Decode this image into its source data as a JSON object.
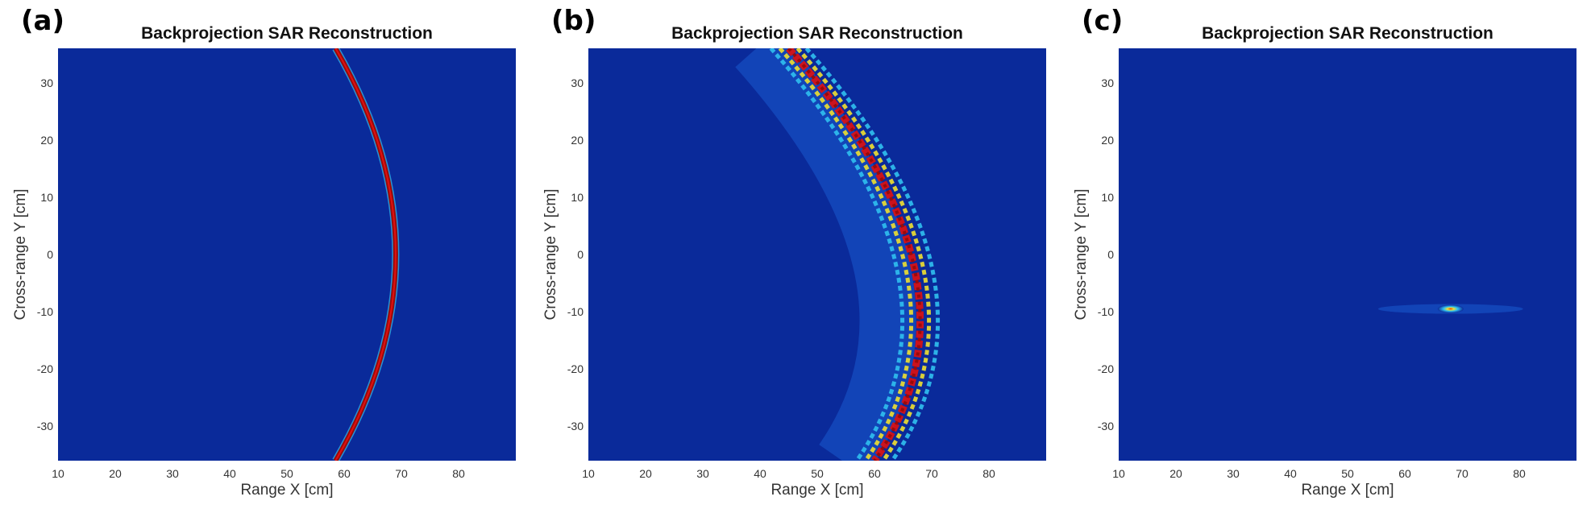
{
  "chart_data": [
    {
      "type": "heatmap",
      "panel_label": "(a)",
      "title": "Backprojection SAR Reconstruction",
      "xlabel": "Range X [cm]",
      "ylabel": "Cross-range Y [cm]",
      "xlim": [
        10,
        90
      ],
      "ylim": [
        -36,
        36
      ],
      "xticks": [
        10,
        20,
        30,
        40,
        50,
        60,
        70,
        80
      ],
      "yticks": [
        30,
        20,
        10,
        0,
        -10,
        -20,
        -30
      ],
      "colormap": "jet",
      "feature": {
        "kind": "thin-arc",
        "vertex": [
          69,
          0
        ],
        "ends": [
          [
            58.5,
            36
          ],
          [
            58.5,
            -36
          ]
        ]
      }
    },
    {
      "type": "heatmap",
      "panel_label": "(b)",
      "title": "Backprojection SAR Reconstruction",
      "xlabel": "Range X [cm]",
      "ylabel": "Cross-range Y [cm]",
      "xlim": [
        10,
        90
      ],
      "ylim": [
        -36,
        36
      ],
      "xticks": [
        10,
        20,
        30,
        40,
        50,
        60,
        70,
        80
      ],
      "yticks": [
        30,
        20,
        10,
        0,
        -10,
        -20,
        -30
      ],
      "colormap": "jet",
      "feature": {
        "kind": "wide-fringed-arc",
        "vertex": [
          67,
          -5
        ],
        "ends": [
          [
            45,
            36
          ],
          [
            60,
            -36
          ]
        ]
      }
    },
    {
      "type": "heatmap",
      "panel_label": "(c)",
      "title": "Backprojection SAR Reconstruction",
      "xlabel": "Range X [cm]",
      "ylabel": "Cross-range Y [cm]",
      "xlim": [
        10,
        90
      ],
      "ylim": [
        -36,
        36
      ],
      "xticks": [
        10,
        20,
        30,
        40,
        50,
        60,
        70,
        80
      ],
      "yticks": [
        30,
        20,
        10,
        0,
        -10,
        -20,
        -30
      ],
      "colormap": "jet",
      "feature": {
        "kind": "point-target",
        "center": [
          68,
          -9.5
        ]
      }
    }
  ],
  "colors": {
    "background": "#0a2a9a",
    "dark_red": "#9a0a0a",
    "red": "#e01010",
    "yellow": "#f0e030",
    "cyan": "#30c0f0",
    "light_blue": "#1a5ad0"
  }
}
